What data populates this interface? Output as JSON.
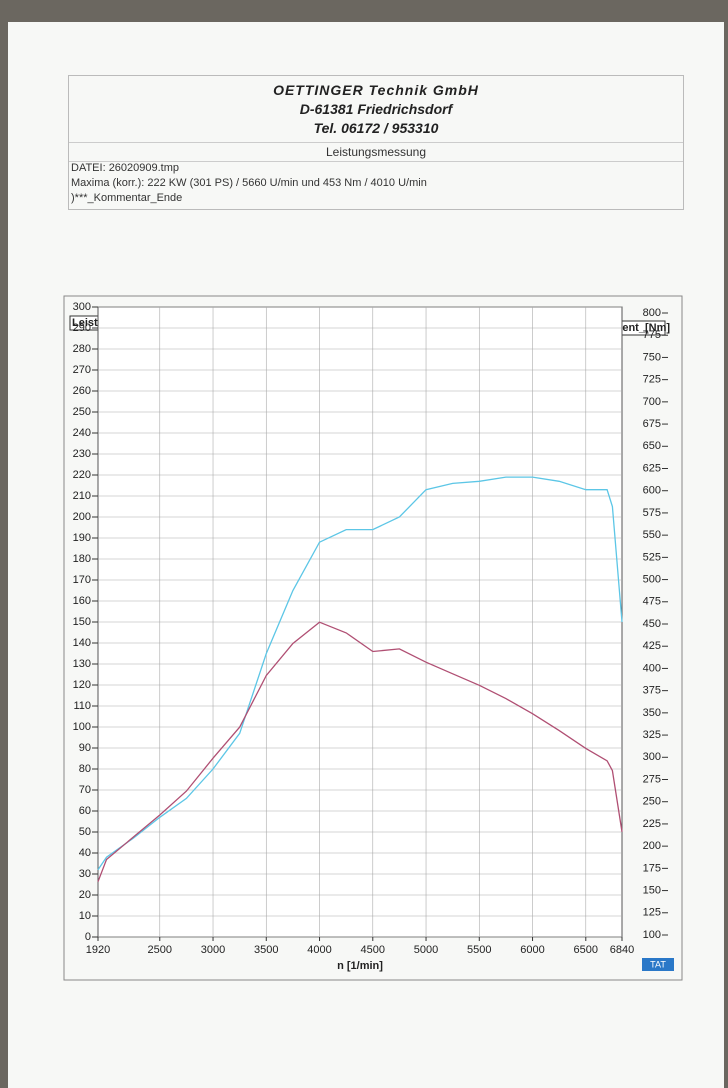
{
  "header": {
    "company": "OETTINGER  Technik GmbH",
    "address": "D-61381 Friedrichsdorf",
    "phone": "Tel.  06172 / 953310",
    "subtitle": "Leistungsmessung",
    "file": "DATEI: 26020909.tmp",
    "maxima": "Maxima (korr.):  222 KW (301 PS) /  5660 U/min  und   453 Nm /  4010 U/min",
    "comment": ")***_Kommentar_Ende",
    "logo": "TAT"
  },
  "chart_data": {
    "type": "line",
    "xlabel": "n  [1/min]",
    "ylabel": "Leistung_[KW]",
    "y2label": "Drehmoment_[Nm]",
    "x": [
      1920,
      2000,
      2250,
      2500,
      2750,
      3000,
      3250,
      3500,
      3750,
      4000,
      4250,
      4500,
      4750,
      5000,
      5250,
      5500,
      5750,
      6000,
      6250,
      6500,
      6700,
      6750,
      6840
    ],
    "series": [
      {
        "name": "Leistung",
        "color": "#5cc6e6",
        "values": [
          32,
          38,
          47,
          57,
          66,
          80,
          97,
          135,
          165,
          188,
          194,
          194,
          200,
          213,
          216,
          217,
          219,
          219,
          217,
          213,
          213,
          205,
          150
        ]
      },
      {
        "name": "Drehmoment",
        "color": "#b04f73",
        "axis": "y2",
        "values": [
          160,
          185,
          210,
          235,
          262,
          299,
          334,
          392,
          428,
          452,
          440,
          419,
          422,
          407,
          394,
          381,
          366,
          349,
          330,
          310,
          296,
          285,
          216
        ]
      }
    ],
    "xlim": [
      1920,
      6840
    ],
    "xticks": [
      1920,
      2500,
      3000,
      3500,
      4000,
      4500,
      5000,
      5500,
      6000,
      6500,
      6840
    ],
    "ylim": [
      0,
      300
    ],
    "yticks": [
      0,
      10,
      20,
      30,
      40,
      50,
      60,
      70,
      80,
      90,
      100,
      110,
      120,
      130,
      140,
      150,
      160,
      170,
      180,
      190,
      200,
      210,
      220,
      230,
      240,
      250,
      260,
      270,
      280,
      290,
      300
    ],
    "y2lim": [
      100,
      800
    ],
    "y2ticks": [
      100,
      125,
      150,
      175,
      200,
      225,
      250,
      275,
      300,
      325,
      350,
      375,
      400,
      425,
      450,
      475,
      500,
      525,
      550,
      575,
      600,
      625,
      650,
      675,
      700,
      725,
      750,
      775,
      800
    ],
    "grid": true
  }
}
